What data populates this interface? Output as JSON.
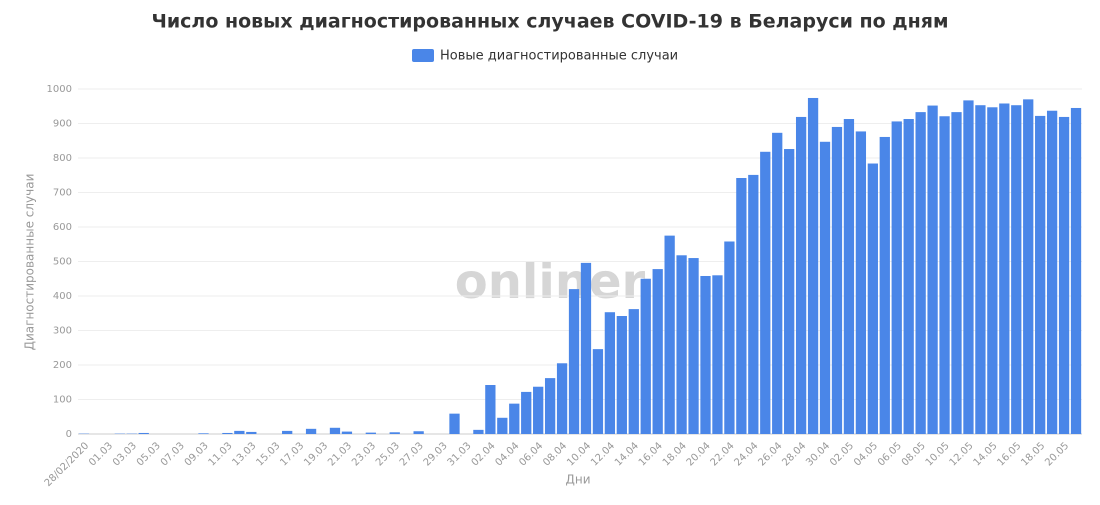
{
  "chart_data": {
    "type": "bar",
    "title": "Число новых диагностированных случаев COVID-19 в Беларуси по дням",
    "watermark": "onliner",
    "x_label": "Дни",
    "y_label": "Диагностированные случаи",
    "categories": [
      "28/02/2020",
      null,
      "01.03",
      null,
      "03.03",
      null,
      "05.03",
      null,
      "07.03",
      null,
      "09.03",
      null,
      "11.03",
      null,
      "13.03",
      null,
      "15.03",
      null,
      "17.03",
      null,
      "19.03",
      null,
      "21.03",
      null,
      "23.03",
      null,
      "25.03",
      null,
      "27.03",
      null,
      "29.03",
      null,
      "31.03",
      null,
      "02.04",
      null,
      "04.04",
      null,
      "06.04",
      null,
      "08.04",
      null,
      "10.04",
      null,
      "12.04",
      null,
      "14.04",
      null,
      "16.04",
      null,
      "18.04",
      null,
      "20.04",
      null,
      "22.04",
      null,
      "24.04",
      null,
      "26.04",
      null,
      "28.04",
      null,
      "30.04",
      null,
      "02.05",
      null,
      "04.05",
      null,
      "06.05",
      null,
      "08.05",
      null,
      "10.05",
      null,
      "12.05",
      null,
      "14.05",
      null,
      "16.05",
      null,
      "18.05",
      null,
      "20.05",
      null
    ],
    "series": [
      {
        "name": "Новые диагностированные случаи",
        "color": "#4a86e8",
        "values": [
          1,
          0,
          0,
          1,
          1,
          3,
          0,
          0,
          0,
          0,
          2,
          0,
          3,
          9,
          6,
          0,
          0,
          9,
          0,
          15,
          0,
          18,
          7,
          0,
          4,
          0,
          5,
          0,
          8,
          0,
          0,
          59,
          0,
          12,
          142,
          47,
          88,
          122,
          137,
          162,
          205,
          420,
          496,
          246,
          353,
          342,
          362,
          450,
          478,
          575,
          518,
          510,
          458,
          460,
          558,
          742,
          751,
          818,
          873,
          826,
          919,
          974,
          847,
          890,
          913,
          877,
          784,
          861,
          906,
          913,
          933,
          952,
          921,
          933,
          967,
          953,
          947,
          958,
          953,
          970,
          922,
          937,
          919,
          945
        ]
      }
    ],
    "ylim": [
      0,
      1000
    ],
    "yticks": [
      0,
      100,
      200,
      300,
      400,
      500,
      600,
      700,
      800,
      900,
      1000
    ],
    "grid": true,
    "legend": "top"
  }
}
